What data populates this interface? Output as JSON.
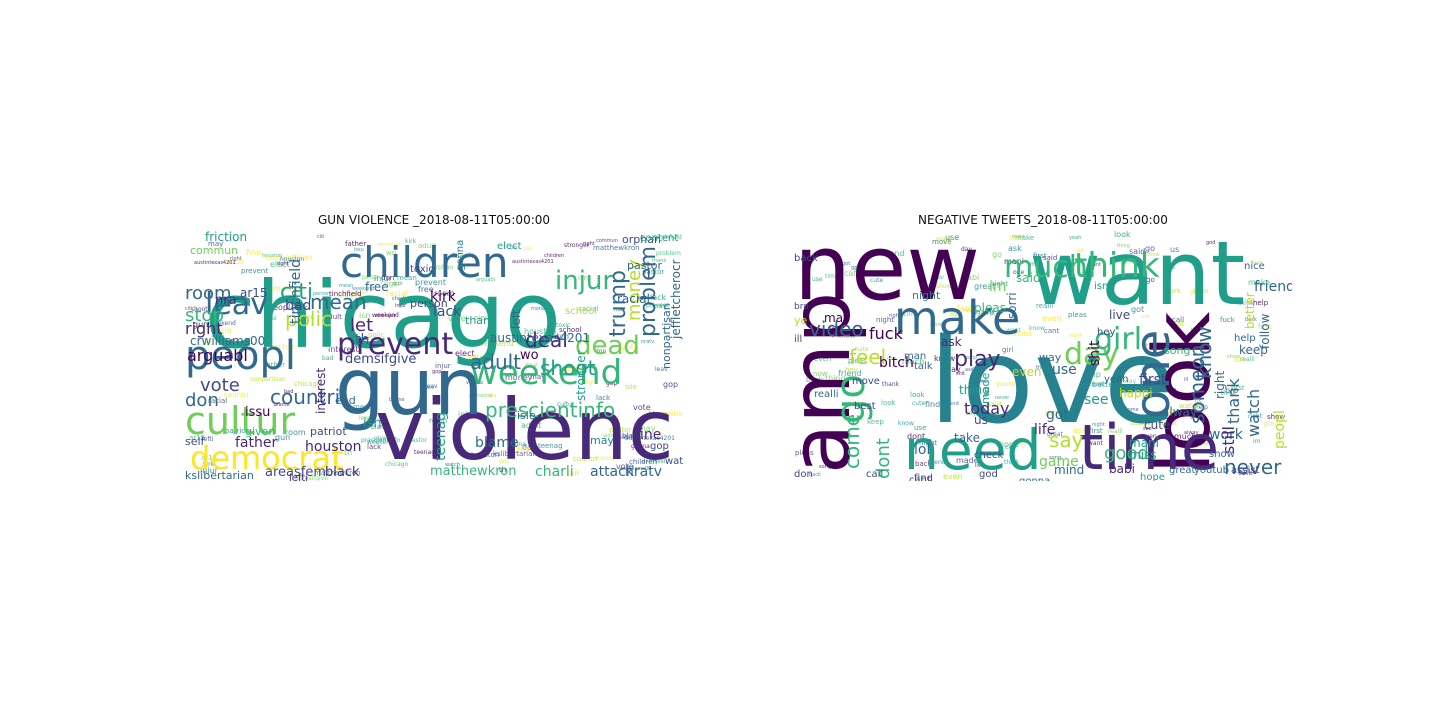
{
  "palette": [
    "#440154",
    "#482878",
    "#3e4a89",
    "#31688e",
    "#26828e",
    "#1f9e89",
    "#35b779",
    "#6ece58",
    "#b5de2b",
    "#fde725"
  ],
  "clouds": [
    {
      "title": "GUN VIOLENCE _2018-08-11T05:00:00",
      "words": [
        "chicago",
        "violenc",
        "gun",
        "children",
        "peopl",
        "weekend",
        "cultur",
        "democrat",
        "prevent",
        "injur",
        "prescientinfo",
        "leav",
        "dead",
        "trump",
        "problem",
        "mean",
        "citi",
        "polic",
        "countri",
        "shoot",
        "adult",
        "vote",
        "deal",
        "money",
        "room",
        "right",
        "stop",
        "don",
        "arguabl",
        "let",
        "houston",
        "black",
        "blame",
        "matthewkron",
        "charli",
        "attack",
        "nratv",
        "teenag",
        "tinchfield",
        "father",
        "areasfem",
        "demsifgive",
        "kslibertarian",
        "lack",
        "kirk",
        "nra",
        "bad",
        "issu",
        "stronger",
        "jeffletcherocr",
        "nonpartisan",
        "friction",
        "austintexas4201",
        "isn",
        "ar15",
        "interest",
        "patriot",
        "crwilliams00",
        "person",
        "self",
        "given",
        "racial",
        "orphan",
        "pastor",
        "fine",
        "watch",
        "free",
        "lefti",
        "wo",
        "th",
        "thank",
        "content",
        "toxic",
        "isle",
        "left",
        "commun",
        "elect",
        "gonna",
        "school",
        "may",
        "gop",
        "end",
        "sinc"
      ]
    },
    {
      "title": "NEGATIVE TWEETS_2018-08-11T05:00:00",
      "words": [
        "new",
        "want",
        "love",
        "amp",
        "look",
        "need",
        "time",
        "make",
        "think",
        "much",
        "one",
        "go",
        "play",
        "day",
        "girl",
        "know",
        "someon",
        "video",
        "come",
        "feel",
        "thank",
        "watch",
        "never",
        "say",
        "fuck",
        "dont",
        "bitch",
        "today",
        "game",
        "good",
        "work",
        "life",
        "peopl",
        "friend",
        "first",
        "alway",
        "still",
        "see",
        "mind",
        "babi",
        "miss",
        "lol",
        "take",
        "got",
        "use",
        "thing",
        "even",
        "happi",
        "shit",
        "pleas",
        "sorri",
        "live",
        "keep",
        "song",
        "right",
        "follow",
        "better",
        "ask",
        "us",
        "made",
        "gonna",
        "mani",
        "cute",
        "great",
        "youtub",
        "assist",
        "don",
        "call",
        "find",
        "god",
        "cant",
        "check",
        "best",
        "move",
        "night",
        "may",
        "ye",
        "realli",
        "way",
        "yeah",
        "show",
        "hope",
        "isnt",
        "bro",
        "ill",
        "im",
        "said",
        "hey",
        "back",
        "help",
        "man",
        "talk",
        "nice",
        "help",
        "hate"
      ]
    }
  ]
}
